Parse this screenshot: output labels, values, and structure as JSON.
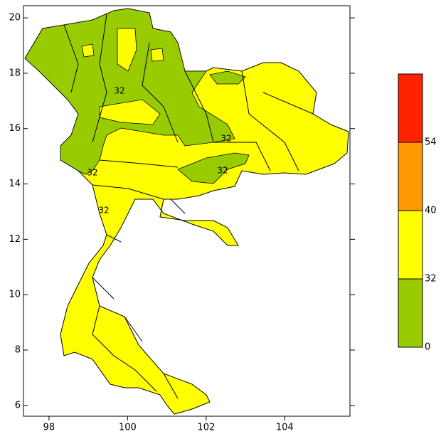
{
  "chart_data": {
    "type": "map",
    "xlim": [
      97.35,
      105.66
    ],
    "ylim": [
      5.61,
      20.44
    ],
    "xticks": [
      98,
      100,
      102,
      104
    ],
    "yticks": [
      6,
      8,
      10,
      12,
      14,
      16,
      18,
      20
    ],
    "colorbar": {
      "levels": [
        0,
        32,
        40,
        54
      ],
      "colors": [
        "#99cc00",
        "#ffff00",
        "#ff9900",
        "#ff2200"
      ]
    },
    "contour_labels": [
      32,
      32,
      32,
      32,
      32
    ]
  }
}
